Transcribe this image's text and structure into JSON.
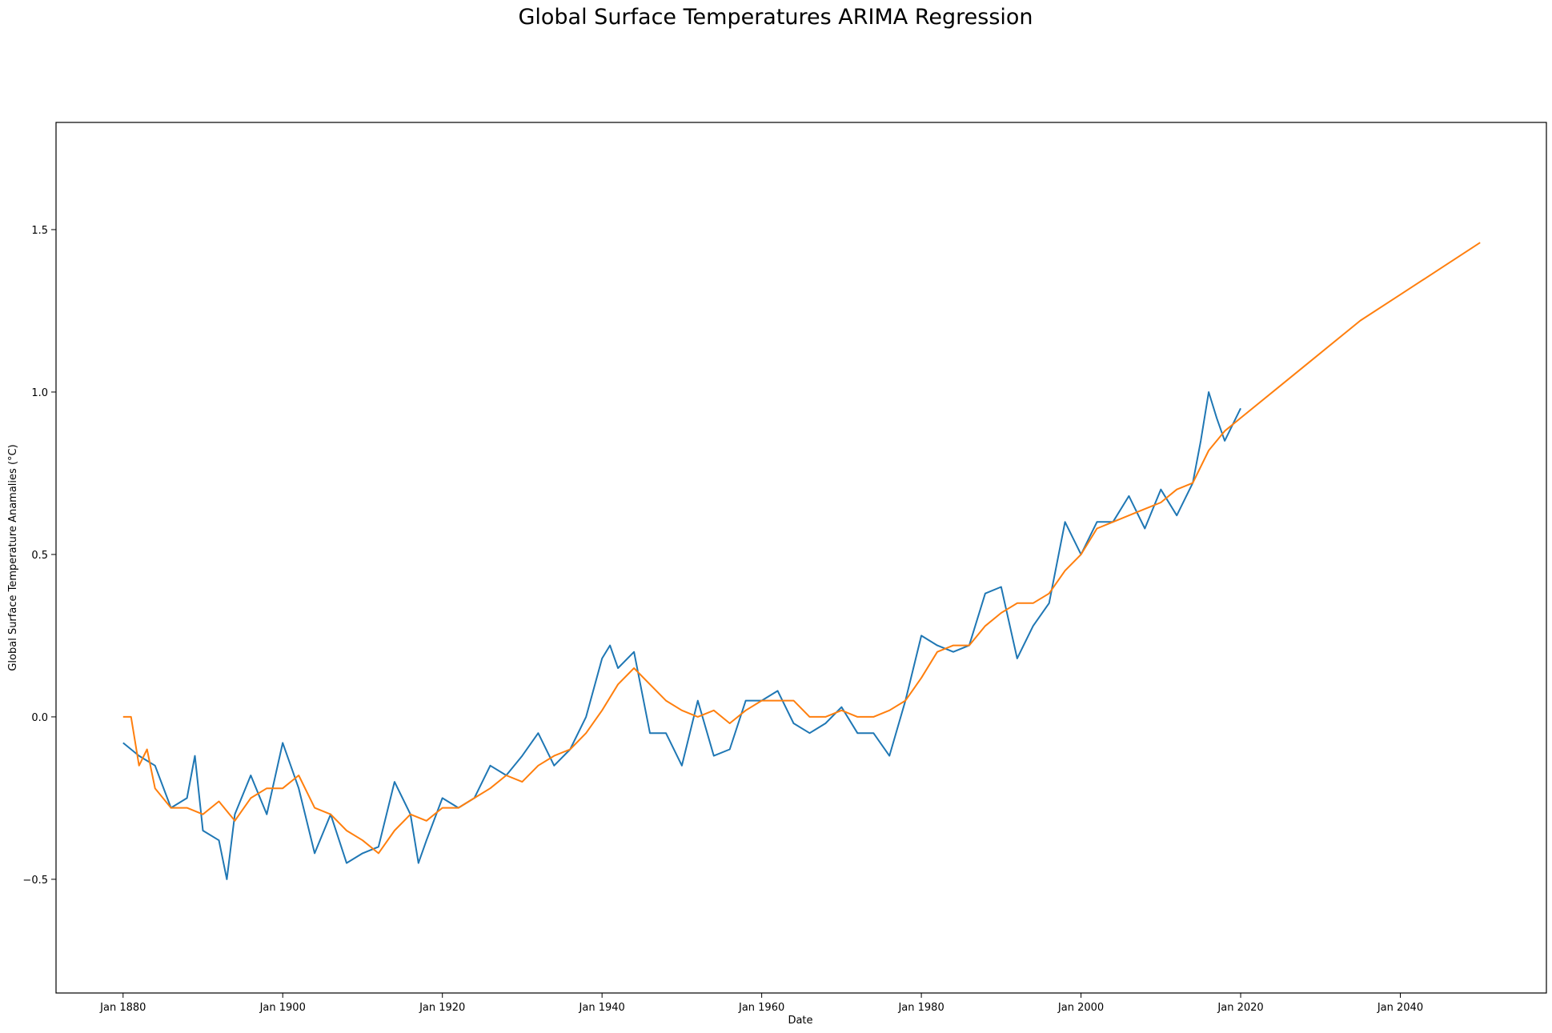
{
  "chart_data": {
    "type": "line",
    "title": "Global Surface Temperatures ARIMA Regression",
    "xlabel": "Date",
    "ylabel": "Global Surface Temperature Anamalies (°C)",
    "xlim": [
      1871.6,
      2058.3
    ],
    "ylim": [
      -0.85,
      1.83
    ],
    "x_ticks": [
      {
        "value": 1880,
        "label": "Jan 1880"
      },
      {
        "value": 1900,
        "label": "Jan 1900"
      },
      {
        "value": 1920,
        "label": "Jan 1920"
      },
      {
        "value": 1940,
        "label": "Jan 1940"
      },
      {
        "value": 1960,
        "label": "Jan 1960"
      },
      {
        "value": 1980,
        "label": "Jan 1980"
      },
      {
        "value": 2000,
        "label": "Jan 2000"
      },
      {
        "value": 2020,
        "label": "Jan 2020"
      },
      {
        "value": 2040,
        "label": "Jan 2040"
      }
    ],
    "y_ticks": [
      {
        "value": -0.5,
        "label": "−0.5"
      },
      {
        "value": 0.0,
        "label": "0.0"
      },
      {
        "value": 0.5,
        "label": "0.5"
      },
      {
        "value": 1.0,
        "label": "1.0"
      },
      {
        "value": 1.5,
        "label": "1.5"
      }
    ],
    "grid": false,
    "series": [
      {
        "color": "#1f77b4",
        "x": [
          1880,
          1882,
          1884,
          1886,
          1888,
          1889,
          1890,
          1892,
          1893,
          1894,
          1896,
          1898,
          1900,
          1902,
          1904,
          1906,
          1908,
          1910,
          1912,
          1914,
          1916,
          1917,
          1918,
          1920,
          1922,
          1924,
          1926,
          1928,
          1930,
          1932,
          1934,
          1936,
          1938,
          1940,
          1941,
          1942,
          1944,
          1946,
          1948,
          1950,
          1952,
          1954,
          1956,
          1958,
          1960,
          1962,
          1964,
          1966,
          1968,
          1970,
          1972,
          1974,
          1976,
          1978,
          1980,
          1982,
          1984,
          1986,
          1988,
          1990,
          1992,
          1994,
          1996,
          1998,
          2000,
          2002,
          2004,
          2006,
          2008,
          2010,
          2012,
          2014,
          2015,
          2016,
          2017,
          2018,
          2019,
          2020
        ],
        "y": [
          -0.08,
          -0.12,
          -0.15,
          -0.28,
          -0.25,
          -0.12,
          -0.35,
          -0.38,
          -0.5,
          -0.3,
          -0.18,
          -0.3,
          -0.08,
          -0.22,
          -0.42,
          -0.3,
          -0.45,
          -0.42,
          -0.4,
          -0.2,
          -0.3,
          -0.45,
          -0.38,
          -0.25,
          -0.28,
          -0.25,
          -0.15,
          -0.18,
          -0.12,
          -0.05,
          -0.15,
          -0.1,
          0.0,
          0.18,
          0.22,
          0.15,
          0.2,
          -0.05,
          -0.05,
          -0.15,
          0.05,
          -0.12,
          -0.1,
          0.05,
          0.05,
          0.08,
          -0.02,
          -0.05,
          -0.02,
          0.03,
          -0.05,
          -0.05,
          -0.12,
          0.05,
          0.25,
          0.22,
          0.2,
          0.22,
          0.38,
          0.4,
          0.18,
          0.28,
          0.35,
          0.6,
          0.5,
          0.6,
          0.6,
          0.68,
          0.58,
          0.7,
          0.62,
          0.72,
          0.85,
          1.0,
          0.92,
          0.85,
          0.9,
          0.95
        ]
      },
      {
        "color": "#ff7f0e",
        "x": [
          1880,
          1881,
          1882,
          1883,
          1884,
          1886,
          1888,
          1890,
          1892,
          1894,
          1896,
          1898,
          1900,
          1902,
          1904,
          1906,
          1908,
          1910,
          1912,
          1914,
          1916,
          1918,
          1920,
          1922,
          1924,
          1926,
          1928,
          1930,
          1932,
          1934,
          1936,
          1938,
          1940,
          1942,
          1944,
          1946,
          1948,
          1950,
          1952,
          1954,
          1956,
          1958,
          1960,
          1962,
          1964,
          1966,
          1968,
          1970,
          1972,
          1974,
          1976,
          1978,
          1980,
          1982,
          1984,
          1986,
          1988,
          1990,
          1992,
          1994,
          1996,
          1998,
          2000,
          2002,
          2004,
          2006,
          2008,
          2010,
          2012,
          2014,
          2016,
          2018,
          2020,
          2025,
          2030,
          2035,
          2040,
          2045,
          2050
        ],
        "y": [
          0.0,
          0.0,
          -0.15,
          -0.1,
          -0.22,
          -0.28,
          -0.28,
          -0.3,
          -0.26,
          -0.32,
          -0.25,
          -0.22,
          -0.22,
          -0.18,
          -0.28,
          -0.3,
          -0.35,
          -0.38,
          -0.42,
          -0.35,
          -0.3,
          -0.32,
          -0.28,
          -0.28,
          -0.25,
          -0.22,
          -0.18,
          -0.2,
          -0.15,
          -0.12,
          -0.1,
          -0.05,
          0.02,
          0.1,
          0.15,
          0.1,
          0.05,
          0.02,
          0.0,
          0.02,
          -0.02,
          0.02,
          0.05,
          0.05,
          0.05,
          0.0,
          0.0,
          0.02,
          0.0,
          0.0,
          0.02,
          0.05,
          0.12,
          0.2,
          0.22,
          0.22,
          0.28,
          0.32,
          0.35,
          0.35,
          0.38,
          0.45,
          0.5,
          0.58,
          0.6,
          0.62,
          0.64,
          0.66,
          0.7,
          0.72,
          0.82,
          0.88,
          0.92,
          1.02,
          1.12,
          1.22,
          1.3,
          1.38,
          1.46
        ]
      }
    ]
  }
}
